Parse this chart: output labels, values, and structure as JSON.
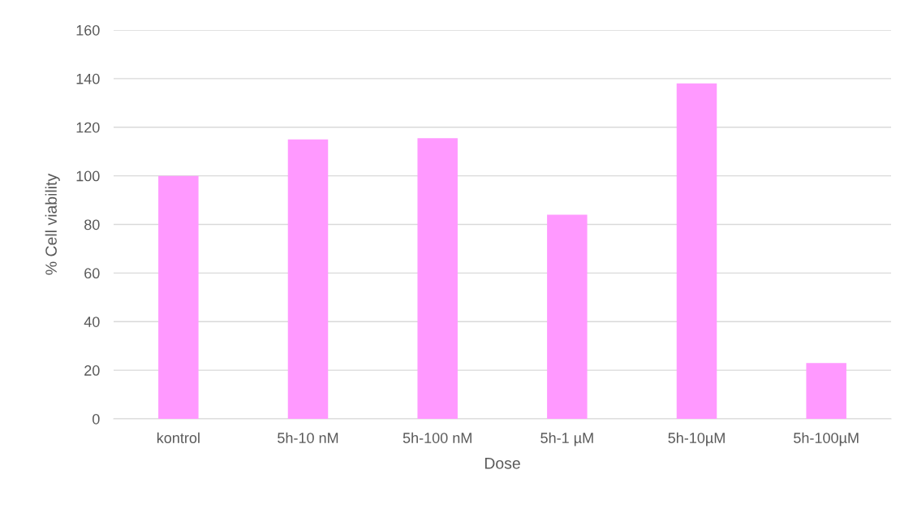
{
  "chart_data": {
    "type": "bar",
    "xlabel": "Dose",
    "ylabel": "% Cell viability",
    "categories": [
      "kontrol",
      "5h-10 nM",
      "5h-100 nM",
      "5h-1 µM",
      "5h-10µM",
      "5h-100µM"
    ],
    "values": [
      100,
      115,
      115.5,
      84,
      138,
      23
    ],
    "color": "#ff99ff",
    "ylim": [
      0,
      160
    ],
    "yticks": [
      0,
      20,
      40,
      60,
      80,
      100,
      120,
      140,
      160
    ],
    "grid": "y"
  }
}
